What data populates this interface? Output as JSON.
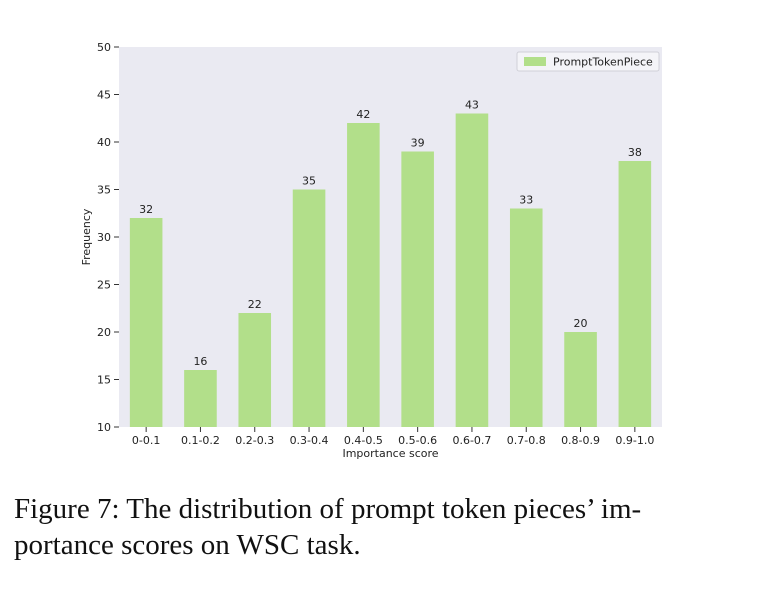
{
  "chart_data": {
    "type": "bar",
    "categories": [
      "0-0.1",
      "0.1-0.2",
      "0.2-0.3",
      "0.3-0.4",
      "0.4-0.5",
      "0.5-0.6",
      "0.6-0.7",
      "0.7-0.8",
      "0.8-0.9",
      "0.9-1.0"
    ],
    "series": [
      {
        "name": "PromptTokenPiece",
        "values": [
          32,
          16,
          22,
          35,
          42,
          39,
          43,
          33,
          20,
          38
        ],
        "color": "#b2df8a"
      }
    ],
    "title": "",
    "xlabel": "Importance score",
    "ylabel": "Frequency",
    "ylim": [
      10,
      50
    ],
    "yticks": [
      10,
      15,
      20,
      25,
      30,
      35,
      40,
      45,
      50
    ],
    "grid": false,
    "legend": "top-right",
    "background": "#eaeaf2",
    "show_data_labels": true
  },
  "caption": {
    "line1": "Figure 7: The distribution of prompt token pieces’ im-",
    "line2": "portance scores on WSC task."
  }
}
